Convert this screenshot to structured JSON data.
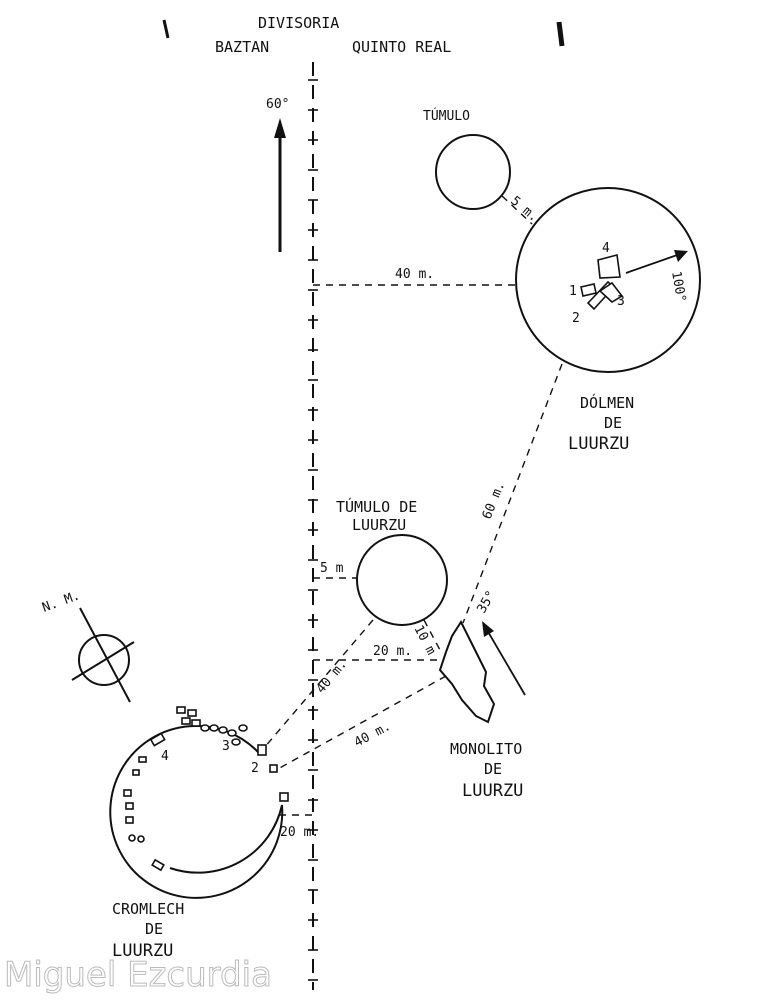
{
  "header": {
    "divide_label": "DIVISORIA",
    "left_label": "BAZTAN",
    "right_label": "QUINTO REAL"
  },
  "north_arrow": {
    "label": "60°"
  },
  "compass": {
    "label": "N. M."
  },
  "tumulo_top": {
    "label": "TÚMULO",
    "gap_label": "5 m."
  },
  "dolmen": {
    "label_line1": "DÓLMEN",
    "label_line2": "DE",
    "label_line3": "LUURZU",
    "distance_label": "40 m.",
    "angle_label": "100°",
    "stones": [
      "1",
      "2",
      "3",
      "4"
    ]
  },
  "tumulo_luurzu": {
    "label_line1": "TÚMULO DE",
    "label_line2": "LUURZU",
    "border_label": "5 m",
    "monolith_gap_label": "10 m"
  },
  "monolito": {
    "label_line1": "MONOLITO",
    "label_line2": "DE",
    "label_line3": "LUURZU",
    "angle_label": "35°",
    "dolmen_distance_label": "60 m.",
    "border_label": "20 m.",
    "cromlech_distance_label": "40 m."
  },
  "cromlech": {
    "label_line1": "CROMLECH",
    "label_line2": "DE",
    "label_line3": "LUURZU",
    "border_label": "20 m.",
    "tumulo_distance_label": "40 m.",
    "stones": [
      "2",
      "3",
      "4"
    ]
  },
  "watermark": "Miguel Ezcurdia"
}
